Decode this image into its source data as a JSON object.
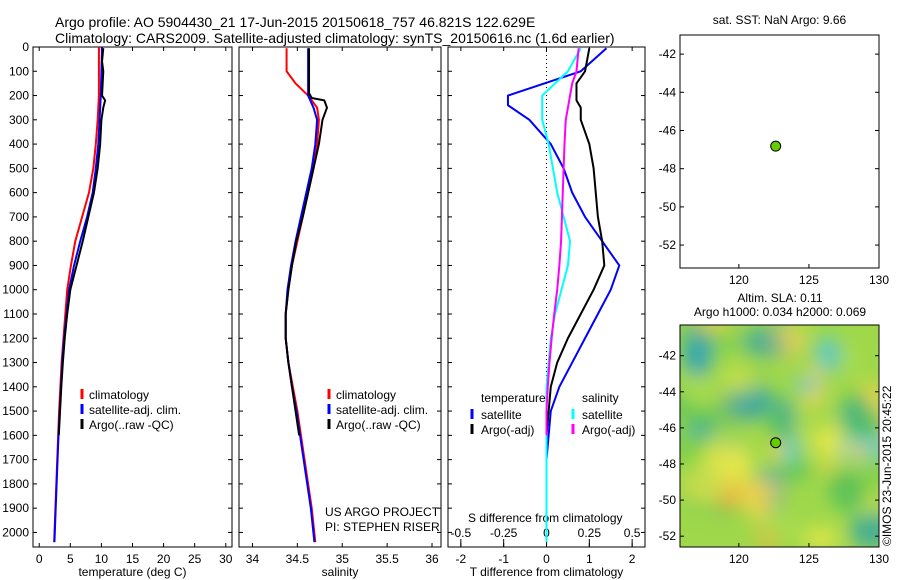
{
  "header": {
    "line1": "Argo profile: AO 5904430_21 17-Jun-2015 20150618_757 46.821S 122.629E",
    "line2": "Climatology: CARS2009. Satellite-adjusted climatology: synTS_20150616.nc (1.6d earlier)"
  },
  "colors": {
    "climatology": "#ff0000",
    "satellite": "#0000ff",
    "argo": "#000000",
    "satellite_s": "#00ffff",
    "argo_s": "#ff00ff",
    "marker": "#66cc00"
  },
  "chart_data": [
    {
      "type": "line",
      "id": "temperature",
      "xlabel": "temperature (deg C)",
      "xlim": [
        -1,
        31
      ],
      "xticks": [
        0,
        5,
        10,
        15,
        20,
        25,
        30
      ],
      "ylim": [
        2060,
        0
      ],
      "yticks": [
        0,
        100,
        200,
        300,
        400,
        500,
        600,
        700,
        800,
        900,
        1000,
        1100,
        1200,
        1300,
        1400,
        1500,
        1600,
        1700,
        1800,
        1900,
        2000
      ],
      "legend": [
        "climatology",
        "satellite-adj. clim.",
        "Argo(..raw -QC)"
      ],
      "series": [
        {
          "name": "climatology",
          "color": "#ff0000",
          "points": [
            [
              9.6,
              0
            ],
            [
              9.6,
              100
            ],
            [
              9.6,
              200
            ],
            [
              9.4,
              300
            ],
            [
              9.1,
              400
            ],
            [
              8.7,
              500
            ],
            [
              8.0,
              600
            ],
            [
              6.9,
              700
            ],
            [
              5.8,
              800
            ],
            [
              5.1,
              900
            ],
            [
              4.5,
              1000
            ],
            [
              4.2,
              1100
            ],
            [
              3.9,
              1200
            ],
            [
              3.6,
              1300
            ],
            [
              3.4,
              1400
            ],
            [
              3.2,
              1500
            ],
            [
              3.05,
              1600
            ],
            [
              2.9,
              1700
            ],
            [
              2.75,
              1800
            ],
            [
              2.6,
              1900
            ],
            [
              2.4,
              2040
            ]
          ]
        },
        {
          "name": "satellite-adj. clim.",
          "color": "#0000ff",
          "points": [
            [
              10.1,
              0
            ],
            [
              10.0,
              100
            ],
            [
              9.9,
              200
            ],
            [
              9.7,
              300
            ],
            [
              9.5,
              400
            ],
            [
              9.1,
              500
            ],
            [
              8.6,
              600
            ],
            [
              7.7,
              700
            ],
            [
              6.6,
              800
            ],
            [
              5.6,
              900
            ],
            [
              4.8,
              1000
            ],
            [
              4.4,
              1100
            ],
            [
              4.0,
              1200
            ],
            [
              3.7,
              1300
            ],
            [
              3.5,
              1400
            ],
            [
              3.3,
              1500
            ],
            [
              3.1,
              1600
            ],
            [
              2.95,
              1700
            ],
            [
              2.8,
              1800
            ],
            [
              2.65,
              1900
            ],
            [
              2.45,
              2040
            ]
          ]
        },
        {
          "name": "Argo(..raw -QC)",
          "color": "#000000",
          "points": [
            [
              10.3,
              5
            ],
            [
              10.1,
              60
            ],
            [
              10.3,
              100
            ],
            [
              10.2,
              150
            ],
            [
              10.1,
              200
            ],
            [
              10.6,
              220
            ],
            [
              10.3,
              250
            ],
            [
              10.0,
              300
            ],
            [
              9.8,
              400
            ],
            [
              9.4,
              500
            ],
            [
              8.8,
              600
            ],
            [
              7.9,
              700
            ],
            [
              7.0,
              800
            ],
            [
              6.0,
              900
            ],
            [
              5.0,
              1000
            ],
            [
              4.5,
              1100
            ],
            [
              4.1,
              1200
            ],
            [
              3.8,
              1300
            ],
            [
              3.55,
              1400
            ],
            [
              3.35,
              1500
            ],
            [
              3.15,
              1600
            ]
          ]
        }
      ]
    },
    {
      "type": "line",
      "id": "salinity",
      "xlabel": "salinity",
      "xlim": [
        33.85,
        36.1
      ],
      "xticks": [
        34,
        34.5,
        35,
        35.5,
        36
      ],
      "ylim": [
        2060,
        0
      ],
      "legend": [
        "climatology",
        "satellite-adj. clim.",
        "Argo(..raw -QC)"
      ],
      "annotation": [
        "US ARGO PROJECT",
        "PI: STEPHEN RISER"
      ],
      "series": [
        {
          "name": "climatology",
          "color": "#ff0000",
          "points": [
            [
              34.38,
              5
            ],
            [
              34.38,
              100
            ],
            [
              34.48,
              150
            ],
            [
              34.62,
              200
            ],
            [
              34.72,
              250
            ],
            [
              34.74,
              300
            ],
            [
              34.72,
              400
            ],
            [
              34.68,
              500
            ],
            [
              34.62,
              600
            ],
            [
              34.56,
              700
            ],
            [
              34.5,
              800
            ],
            [
              34.44,
              900
            ],
            [
              34.4,
              1000
            ],
            [
              34.37,
              1100
            ],
            [
              34.37,
              1200
            ],
            [
              34.4,
              1300
            ],
            [
              34.45,
              1400
            ],
            [
              34.5,
              1500
            ],
            [
              34.54,
              1600
            ],
            [
              34.58,
              1700
            ],
            [
              34.62,
              1800
            ],
            [
              34.66,
              1900
            ],
            [
              34.7,
              2040
            ]
          ]
        },
        {
          "name": "satellite-adj. clim.",
          "color": "#0000ff",
          "points": [
            [
              34.62,
              5
            ],
            [
              34.62,
              100
            ],
            [
              34.62,
              200
            ],
            [
              34.68,
              250
            ],
            [
              34.72,
              300
            ],
            [
              34.7,
              400
            ],
            [
              34.66,
              500
            ],
            [
              34.6,
              600
            ],
            [
              34.54,
              700
            ],
            [
              34.48,
              800
            ],
            [
              34.43,
              900
            ],
            [
              34.39,
              1000
            ],
            [
              34.37,
              1100
            ],
            [
              34.37,
              1200
            ],
            [
              34.4,
              1300
            ],
            [
              34.44,
              1400
            ],
            [
              34.49,
              1500
            ],
            [
              34.53,
              1600
            ],
            [
              34.57,
              1700
            ],
            [
              34.61,
              1800
            ],
            [
              34.65,
              1900
            ],
            [
              34.69,
              2040
            ]
          ]
        },
        {
          "name": "Argo(..raw -QC)",
          "color": "#000000",
          "points": [
            [
              34.63,
              5
            ],
            [
              34.63,
              100
            ],
            [
              34.63,
              190
            ],
            [
              34.66,
              210
            ],
            [
              34.8,
              220
            ],
            [
              34.83,
              250
            ],
            [
              34.78,
              300
            ],
            [
              34.74,
              400
            ],
            [
              34.68,
              500
            ],
            [
              34.62,
              600
            ],
            [
              34.56,
              700
            ],
            [
              34.49,
              800
            ],
            [
              34.44,
              900
            ],
            [
              34.4,
              1000
            ],
            [
              34.37,
              1100
            ],
            [
              34.37,
              1200
            ],
            [
              34.4,
              1300
            ],
            [
              34.44,
              1400
            ],
            [
              34.48,
              1500
            ],
            [
              34.52,
              1600
            ]
          ]
        }
      ]
    },
    {
      "type": "line",
      "id": "difference",
      "xlabel": "T difference from climatology",
      "xlabel_top": "S difference from climatology",
      "xlim": [
        -2.3,
        2.3
      ],
      "xticks": [
        -2,
        -1,
        0,
        1,
        2
      ],
      "xticklabels": [
        "-2",
        "-1",
        "0",
        "1",
        "2"
      ],
      "s_ticks": [
        -0.5,
        -0.25,
        0,
        0.25,
        0.5
      ],
      "s_ticklabels": [
        "-0.5",
        "-0.25",
        "0",
        "0.25",
        "0.5"
      ],
      "ylim": [
        2060,
        0
      ],
      "legend_titles": [
        "temperature",
        "salinity"
      ],
      "legend": [
        "satellite",
        "Argo(-adj)",
        "satellite",
        "Argo(-adj)"
      ],
      "series": [
        {
          "name": "temperature satellite",
          "color": "#0000ff",
          "points": [
            [
              1.4,
              5
            ],
            [
              0.8,
              100
            ],
            [
              -0.9,
              200
            ],
            [
              -0.9,
              240
            ],
            [
              -0.4,
              300
            ],
            [
              0.1,
              400
            ],
            [
              0.4,
              500
            ],
            [
              0.6,
              600
            ],
            [
              0.9,
              700
            ],
            [
              1.3,
              800
            ],
            [
              1.7,
              900
            ],
            [
              1.5,
              1000
            ],
            [
              1.2,
              1100
            ],
            [
              0.9,
              1200
            ],
            [
              0.6,
              1300
            ],
            [
              0.3,
              1400
            ],
            [
              0.1,
              1500
            ],
            [
              0.0,
              1700
            ],
            [
              0.0,
              2040
            ]
          ]
        },
        {
          "name": "temperature Argo(-adj)",
          "color": "#000000",
          "points": [
            [
              1.0,
              5
            ],
            [
              0.9,
              100
            ],
            [
              0.7,
              150
            ],
            [
              0.7,
              220
            ],
            [
              0.8,
              250
            ],
            [
              0.8,
              300
            ],
            [
              1.0,
              400
            ],
            [
              1.1,
              500
            ],
            [
              1.15,
              600
            ],
            [
              1.2,
              700
            ],
            [
              1.3,
              800
            ],
            [
              1.35,
              900
            ],
            [
              1.1,
              1000
            ],
            [
              0.8,
              1100
            ],
            [
              0.5,
              1200
            ],
            [
              0.25,
              1300
            ],
            [
              0.1,
              1400
            ],
            [
              0.05,
              1500
            ],
            [
              0.0,
              1600
            ]
          ]
        },
        {
          "name": "salinity satellite",
          "color": "#00ffff",
          "points": [
            [
              0.8,
              5
            ],
            [
              0.5,
              100
            ],
            [
              -0.1,
              200
            ],
            [
              -0.1,
              300
            ],
            [
              0.05,
              400
            ],
            [
              0.15,
              500
            ],
            [
              0.25,
              600
            ],
            [
              0.4,
              700
            ],
            [
              0.55,
              800
            ],
            [
              0.5,
              900
            ],
            [
              0.35,
              1000
            ],
            [
              0.2,
              1100
            ],
            [
              0.1,
              1200
            ],
            [
              0.05,
              1300
            ],
            [
              0.0,
              1400
            ],
            [
              0.0,
              2040
            ]
          ]
        },
        {
          "name": "salinity Argo(-adj)",
          "color": "#ff00ff",
          "points": [
            [
              0.75,
              5
            ],
            [
              0.7,
              100
            ],
            [
              0.6,
              150
            ],
            [
              0.55,
              200
            ],
            [
              0.5,
              250
            ],
            [
              0.45,
              300
            ],
            [
              0.42,
              400
            ],
            [
              0.4,
              500
            ],
            [
              0.38,
              600
            ],
            [
              0.36,
              700
            ],
            [
              0.34,
              800
            ],
            [
              0.3,
              900
            ],
            [
              0.25,
              1000
            ],
            [
              0.18,
              1100
            ],
            [
              0.12,
              1200
            ],
            [
              0.07,
              1300
            ],
            [
              0.03,
              1400
            ],
            [
              0.0,
              1500
            ],
            [
              0.0,
              1600
            ]
          ]
        }
      ]
    },
    {
      "type": "scatter",
      "id": "sst-map",
      "title": "sat. SST: NaN Argo: 9.66",
      "xlim": [
        115.8,
        130
      ],
      "ylim": [
        -53.2,
        -41
      ],
      "xticks": [
        120,
        125,
        130
      ],
      "yticks": [
        -42,
        -44,
        -46,
        -48,
        -50,
        -52
      ],
      "points": [
        {
          "lon": 122.629,
          "lat": -46.821
        }
      ]
    },
    {
      "type": "heatmap",
      "id": "sla-map",
      "title_lines": [
        "Altim. SLA: 0.11",
        "Argo h1000: 0.034 h2000: 0.069"
      ],
      "xlim": [
        115.8,
        130
      ],
      "ylim": [
        -52.6,
        -40.3
      ],
      "xticks": [
        120,
        125,
        130
      ],
      "yticks": [
        -42,
        -44,
        -46,
        -48,
        -50,
        -52
      ],
      "points": [
        {
          "lon": 122.629,
          "lat": -46.821
        }
      ],
      "side_label": "©IMOS 23-Jun-2015 20:45:22"
    }
  ]
}
